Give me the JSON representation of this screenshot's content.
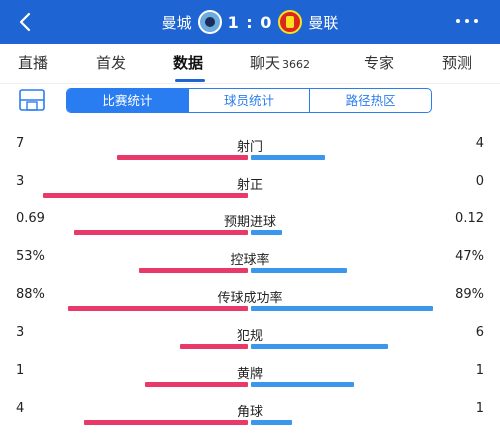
{
  "header": {
    "home_team": "曼城",
    "away_team": "曼联",
    "score": "1 : 0"
  },
  "tabs": [
    {
      "label": "直播",
      "extra": ""
    },
    {
      "label": "首发",
      "extra": ""
    },
    {
      "label": "数据",
      "extra": ""
    },
    {
      "label": "聊天",
      "extra": "3662"
    },
    {
      "label": "专家",
      "extra": ""
    },
    {
      "label": "预测",
      "extra": ""
    }
  ],
  "active_tab": "数据",
  "segments": [
    "比赛统计",
    "球员统计",
    "路径热区"
  ],
  "active_segment": "比赛统计",
  "colors": {
    "header": "#1e64d2",
    "home_bar": "#e8396a",
    "away_bar": "#3a97ec",
    "accent": "#2a7df0"
  },
  "stats": [
    {
      "label": "射门",
      "home": "7",
      "away": "4",
      "home_share": 0.64,
      "away_share": 0.36
    },
    {
      "label": "射正",
      "home": "3",
      "away": "0",
      "home_share": 1.0,
      "away_share": 0.0
    },
    {
      "label": "预期进球",
      "home": "0.69",
      "away": "0.12",
      "home_share": 0.85,
      "away_share": 0.15
    },
    {
      "label": "控球率",
      "home": "53%",
      "away": "47%",
      "home_share": 0.53,
      "away_share": 0.47
    },
    {
      "label": "传球成功率",
      "home": "88%",
      "away": "89%",
      "home_share": 0.88,
      "away_share": 0.89
    },
    {
      "label": "犯规",
      "home": "3",
      "away": "6",
      "home_share": 0.33,
      "away_share": 0.67
    },
    {
      "label": "黄牌",
      "home": "1",
      "away": "1",
      "home_share": 0.5,
      "away_share": 0.5
    },
    {
      "label": "角球",
      "home": "4",
      "away": "1",
      "home_share": 0.8,
      "away_share": 0.2
    }
  ]
}
